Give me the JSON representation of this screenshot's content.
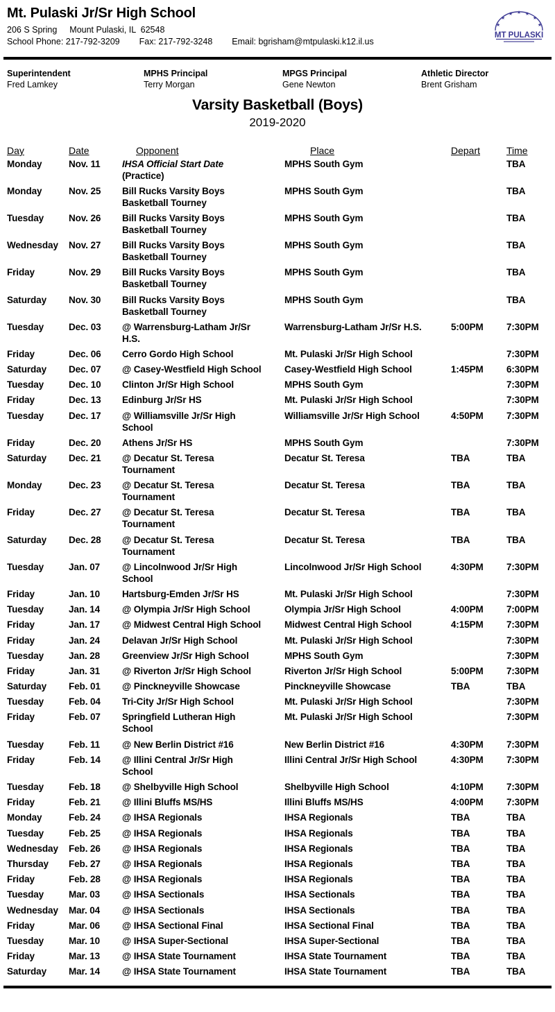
{
  "header": {
    "school_name": "Mt. Pulaski Jr/Sr High School",
    "address_street": "206 S Spring",
    "address_city": "Mount Pulaski, IL  62548",
    "phone_label": "School Phone: 217-792-3209",
    "fax_label": "Fax: 217-792-3248",
    "email_label": "Email: bgrisham@mtpulaski.k12.il.us",
    "logo_text": "MT PULASKI"
  },
  "staff": {
    "superintendent_title": "Superintendent",
    "superintendent_name": "Fred Lamkey",
    "mphs_principal_title": "MPHS Principal",
    "mphs_principal_name": "Terry Morgan",
    "mpgs_principal_title": "MPGS Principal",
    "mpgs_principal_name": "Gene Newton",
    "athletic_director_title": "Athletic Director",
    "athletic_director_name": "Brent Grisham"
  },
  "title": "Varsity Basketball (Boys)",
  "season": "2019-2020",
  "colors": {
    "text": "#000000",
    "background": "#ffffff",
    "logo": "#3d3a94"
  },
  "schedule": {
    "columns": [
      "Day",
      "Date",
      "Opponent",
      "Place",
      "Depart",
      "Time"
    ],
    "rows": [
      {
        "day": "Monday",
        "date": "Nov. 11",
        "opponent": "IHSA Official Start Date",
        "italic": true,
        "note": "(Practice)",
        "place": "MPHS South Gym",
        "depart": "",
        "time": "TBA"
      },
      {
        "day": "Monday",
        "date": "Nov. 25",
        "opponent": "Bill Rucks Varsity Boys\nBasketball Tourney",
        "place": "MPHS South Gym",
        "depart": "",
        "time": "TBA"
      },
      {
        "day": "Tuesday",
        "date": "Nov. 26",
        "opponent": "Bill Rucks Varsity Boys\nBasketball Tourney",
        "place": "MPHS South Gym",
        "depart": "",
        "time": "TBA"
      },
      {
        "day": "Wednesday",
        "date": "Nov. 27",
        "opponent": "Bill Rucks Varsity Boys\nBasketball Tourney",
        "place": "MPHS South Gym",
        "depart": "",
        "time": "TBA"
      },
      {
        "day": "Friday",
        "date": "Nov. 29",
        "opponent": "Bill Rucks Varsity Boys\nBasketball Tourney",
        "place": "MPHS South Gym",
        "depart": "",
        "time": "TBA"
      },
      {
        "day": "Saturday",
        "date": "Nov. 30",
        "opponent": "Bill Rucks Varsity Boys\nBasketball Tourney",
        "place": "MPHS South Gym",
        "depart": "",
        "time": "TBA"
      },
      {
        "day": "Tuesday",
        "date": "Dec. 03",
        "opponent": "@ Warrensburg-Latham Jr/Sr\nH.S.",
        "place": "Warrensburg-Latham Jr/Sr H.S.",
        "depart": "5:00PM",
        "time": "7:30PM"
      },
      {
        "day": "Friday",
        "date": "Dec. 06",
        "opponent": "Cerro Gordo High School",
        "place": "Mt. Pulaski Jr/Sr High School",
        "depart": "",
        "time": "7:30PM"
      },
      {
        "day": "Saturday",
        "date": "Dec. 07",
        "opponent": "@ Casey-Westfield High School",
        "place": "Casey-Westfield High School",
        "depart": "1:45PM",
        "time": "6:30PM"
      },
      {
        "day": "Tuesday",
        "date": "Dec. 10",
        "opponent": "Clinton Jr/Sr High School",
        "place": "MPHS South Gym",
        "depart": "",
        "time": "7:30PM"
      },
      {
        "day": "Friday",
        "date": "Dec. 13",
        "opponent": "Edinburg Jr/Sr HS",
        "place": "Mt. Pulaski Jr/Sr High School",
        "depart": "",
        "time": "7:30PM"
      },
      {
        "day": "Tuesday",
        "date": "Dec. 17",
        "opponent": "@ Williamsville Jr/Sr High\nSchool",
        "place": "Williamsville Jr/Sr High School",
        "depart": "4:50PM",
        "time": "7:30PM"
      },
      {
        "day": "Friday",
        "date": "Dec. 20",
        "opponent": "Athens Jr/Sr HS",
        "place": "MPHS South Gym",
        "depart": "",
        "time": "7:30PM"
      },
      {
        "day": "Saturday",
        "date": "Dec. 21",
        "opponent": "@ Decatur St. Teresa\nTournament",
        "place": "Decatur St. Teresa",
        "depart": "TBA",
        "time": "TBA"
      },
      {
        "day": "Monday",
        "date": "Dec. 23",
        "opponent": "@ Decatur St. Teresa\nTournament",
        "place": "Decatur St. Teresa",
        "depart": "TBA",
        "time": "TBA"
      },
      {
        "day": "Friday",
        "date": "Dec. 27",
        "opponent": "@ Decatur St. Teresa\nTournament",
        "place": "Decatur St. Teresa",
        "depart": "TBA",
        "time": "TBA"
      },
      {
        "day": "Saturday",
        "date": "Dec. 28",
        "opponent": "@ Decatur St. Teresa\nTournament",
        "place": "Decatur St. Teresa",
        "depart": "TBA",
        "time": "TBA"
      },
      {
        "day": "Tuesday",
        "date": "Jan. 07",
        "opponent": "@ Lincolnwood Jr/Sr High\nSchool",
        "place": "Lincolnwood Jr/Sr High School",
        "depart": "4:30PM",
        "time": "7:30PM"
      },
      {
        "day": "Friday",
        "date": "Jan. 10",
        "opponent": "Hartsburg-Emden Jr/Sr HS",
        "place": "Mt. Pulaski Jr/Sr High School",
        "depart": "",
        "time": "7:30PM"
      },
      {
        "day": "Tuesday",
        "date": "Jan. 14",
        "opponent": "@ Olympia Jr/Sr High School",
        "place": "Olympia Jr/Sr High School",
        "depart": "4:00PM",
        "time": "7:00PM"
      },
      {
        "day": "Friday",
        "date": "Jan. 17",
        "opponent": "@ Midwest Central High School",
        "place": "Midwest Central High School",
        "depart": "4:15PM",
        "time": "7:30PM"
      },
      {
        "day": "Friday",
        "date": "Jan. 24",
        "opponent": "Delavan Jr/Sr High School",
        "place": "Mt. Pulaski Jr/Sr High School",
        "depart": "",
        "time": "7:30PM"
      },
      {
        "day": "Tuesday",
        "date": "Jan. 28",
        "opponent": "Greenview Jr/Sr High School",
        "place": "MPHS South Gym",
        "depart": "",
        "time": "7:30PM"
      },
      {
        "day": "Friday",
        "date": "Jan. 31",
        "opponent": "@ Riverton Jr/Sr High School",
        "place": "Riverton Jr/Sr High School",
        "depart": "5:00PM",
        "time": "7:30PM"
      },
      {
        "day": "Saturday",
        "date": "Feb. 01",
        "opponent": "@ Pinckneyville Showcase",
        "place": "Pinckneyville Showcase",
        "depart": "TBA",
        "time": "TBA"
      },
      {
        "day": "Tuesday",
        "date": "Feb. 04",
        "opponent": "Tri-City Jr/Sr High School",
        "place": "Mt. Pulaski Jr/Sr High School",
        "depart": "",
        "time": "7:30PM"
      },
      {
        "day": "Friday",
        "date": "Feb. 07",
        "opponent": "Springfield Lutheran High\nSchool",
        "place": "Mt. Pulaski Jr/Sr High School",
        "depart": "",
        "time": "7:30PM"
      },
      {
        "day": "Tuesday",
        "date": "Feb. 11",
        "opponent": "@ New Berlin District #16",
        "place": "New Berlin District #16",
        "depart": "4:30PM",
        "time": "7:30PM"
      },
      {
        "day": "Friday",
        "date": "Feb. 14",
        "opponent": "@ Illini Central Jr/Sr High\nSchool",
        "place": "Illini Central Jr/Sr High School",
        "depart": "4:30PM",
        "time": "7:30PM"
      },
      {
        "day": "Tuesday",
        "date": "Feb. 18",
        "opponent": "@ Shelbyville High School",
        "place": "Shelbyville High School",
        "depart": "4:10PM",
        "time": "7:30PM"
      },
      {
        "day": "Friday",
        "date": "Feb. 21",
        "opponent": "@ Illini Bluffs MS/HS",
        "place": "Illini Bluffs MS/HS",
        "depart": "4:00PM",
        "time": "7:30PM"
      },
      {
        "day": "Monday",
        "date": "Feb. 24",
        "opponent": "@ IHSA Regionals",
        "place": "IHSA Regionals",
        "depart": "TBA",
        "time": "TBA"
      },
      {
        "day": "Tuesday",
        "date": "Feb. 25",
        "opponent": "@ IHSA Regionals",
        "place": "IHSA Regionals",
        "depart": "TBA",
        "time": "TBA"
      },
      {
        "day": "Wednesday",
        "date": "Feb. 26",
        "opponent": "@ IHSA Regionals",
        "place": "IHSA Regionals",
        "depart": "TBA",
        "time": "TBA"
      },
      {
        "day": "Thursday",
        "date": "Feb. 27",
        "opponent": "@ IHSA Regionals",
        "place": "IHSA Regionals",
        "depart": "TBA",
        "time": "TBA"
      },
      {
        "day": "Friday",
        "date": "Feb. 28",
        "opponent": "@ IHSA Regionals",
        "place": "IHSA Regionals",
        "depart": "TBA",
        "time": "TBA"
      },
      {
        "day": "Tuesday",
        "date": "Mar. 03",
        "opponent": "@ IHSA Sectionals",
        "place": "IHSA Sectionals",
        "depart": "TBA",
        "time": "TBA"
      },
      {
        "day": "Wednesday",
        "date": "Mar. 04",
        "opponent": "@ IHSA Sectionals",
        "place": "IHSA Sectionals",
        "depart": "TBA",
        "time": "TBA"
      },
      {
        "day": "Friday",
        "date": "Mar. 06",
        "opponent": "@ IHSA Sectional Final",
        "place": "IHSA Sectional Final",
        "depart": "TBA",
        "time": "TBA"
      },
      {
        "day": "Tuesday",
        "date": "Mar. 10",
        "opponent": "@ IHSA Super-Sectional",
        "place": "IHSA Super-Sectional",
        "depart": "TBA",
        "time": "TBA"
      },
      {
        "day": "Friday",
        "date": "Mar. 13",
        "opponent": "@ IHSA State Tournament",
        "place": "IHSA State Tournament",
        "depart": "TBA",
        "time": "TBA"
      },
      {
        "day": "Saturday",
        "date": "Mar. 14",
        "opponent": "@ IHSA State Tournament",
        "place": "IHSA State Tournament",
        "depart": "TBA",
        "time": "TBA"
      }
    ]
  }
}
